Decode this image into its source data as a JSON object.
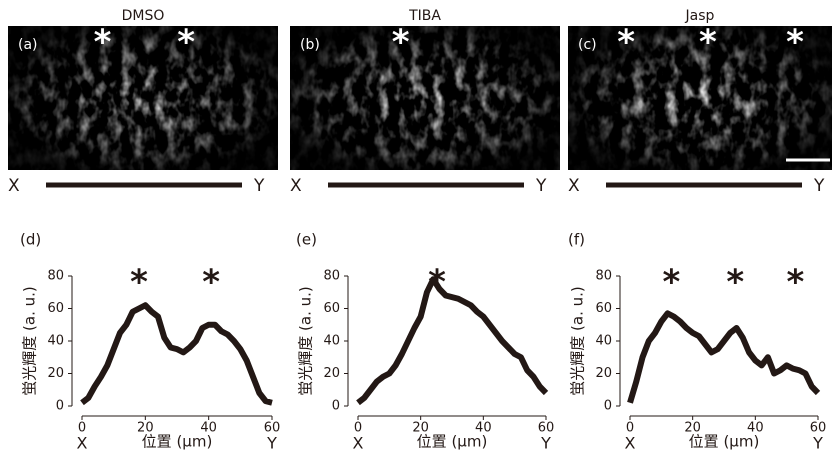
{
  "images": [
    {
      "label": "(a)",
      "title": "DMSO",
      "start": "X",
      "end": "Y",
      "marks": [
        "*",
        "*"
      ]
    },
    {
      "label": "(b)",
      "title": "TIBA",
      "start": "X",
      "end": "Y",
      "marks": [
        "*"
      ]
    },
    {
      "label": "(c)",
      "title": "Jasp",
      "start": "X",
      "end": "Y",
      "marks": [
        "*",
        "*",
        "*"
      ]
    }
  ],
  "chart_data": [
    {
      "type": "line",
      "label": "(d)",
      "y_label": "蛍光輝度 (a. u.)",
      "x_label": "位置 (μm)",
      "x_start": "X",
      "x_end": "Y",
      "annotations": [
        "*",
        "*"
      ],
      "color": "#231815",
      "x": [
        0,
        2,
        4,
        6,
        8,
        10,
        12,
        14,
        16,
        18,
        20,
        22,
        24,
        26,
        28,
        30,
        32,
        34,
        36,
        38,
        40,
        42,
        44,
        46,
        48,
        50,
        52,
        54,
        56,
        58,
        60
      ],
      "values": [
        2,
        5,
        12,
        18,
        25,
        35,
        45,
        50,
        58,
        60,
        62,
        58,
        55,
        42,
        36,
        35,
        33,
        36,
        40,
        48,
        50,
        50,
        46,
        44,
        40,
        35,
        28,
        18,
        8,
        3,
        2
      ],
      "xlim": [
        0,
        60
      ],
      "xticks": [
        0,
        20,
        40,
        60
      ],
      "ylim": [
        0,
        80
      ],
      "yticks": [
        0,
        20,
        40,
        60,
        80
      ]
    },
    {
      "type": "line",
      "label": "(e)",
      "y_label": "蛍光輝度 (a. u.)",
      "x_label": "位置 (μm)",
      "x_start": "X",
      "x_end": "Y",
      "annotations": [
        "*"
      ],
      "color": "#231815",
      "x": [
        0,
        2,
        4,
        6,
        8,
        10,
        12,
        14,
        16,
        18,
        20,
        22,
        24,
        26,
        28,
        30,
        32,
        34,
        36,
        38,
        40,
        42,
        44,
        46,
        48,
        50,
        52,
        54,
        56,
        58,
        60
      ],
      "values": [
        2,
        5,
        10,
        15,
        18,
        20,
        25,
        32,
        40,
        48,
        55,
        70,
        78,
        72,
        68,
        67,
        66,
        64,
        62,
        58,
        55,
        50,
        45,
        40,
        36,
        32,
        30,
        22,
        18,
        12,
        8
      ],
      "xlim": [
        0,
        60
      ],
      "xticks": [
        0,
        20,
        40,
        60
      ],
      "ylim": [
        0,
        80
      ],
      "yticks": [
        0,
        20,
        40,
        60,
        80
      ]
    },
    {
      "type": "line",
      "label": "(f)",
      "y_label": "蛍光輝度 (a. u.)",
      "x_label": "位置 (μm)",
      "x_start": "X",
      "x_end": "Y",
      "annotations": [
        "*",
        "*",
        "*"
      ],
      "color": "#231815",
      "x": [
        0,
        2,
        4,
        6,
        8,
        10,
        12,
        14,
        16,
        18,
        20,
        22,
        24,
        26,
        28,
        30,
        32,
        34,
        36,
        38,
        40,
        42,
        44,
        46,
        48,
        50,
        52,
        54,
        56,
        58,
        60
      ],
      "values": [
        2,
        15,
        30,
        40,
        45,
        52,
        57,
        55,
        52,
        48,
        45,
        43,
        38,
        33,
        35,
        40,
        45,
        48,
        42,
        33,
        28,
        25,
        30,
        20,
        22,
        25,
        23,
        22,
        20,
        12,
        8
      ],
      "xlim": [
        0,
        60
      ],
      "xticks": [
        0,
        20,
        40,
        60
      ],
      "ylim": [
        0,
        80
      ],
      "yticks": [
        0,
        20,
        40,
        60,
        80
      ]
    }
  ]
}
